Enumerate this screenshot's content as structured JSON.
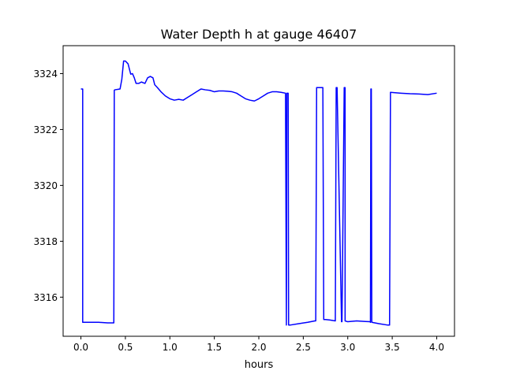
{
  "chart_data": {
    "type": "line",
    "title": "Water Depth h at gauge 46407",
    "xlabel": "hours",
    "ylabel": "",
    "xlim": [
      -0.2,
      4.2
    ],
    "ylim": [
      3314.6,
      3325.0
    ],
    "xticks": [
      0.0,
      0.5,
      1.0,
      1.5,
      2.0,
      2.5,
      3.0,
      3.5,
      4.0
    ],
    "xtick_labels": [
      "0.0",
      "0.5",
      "1.0",
      "1.5",
      "2.0",
      "2.5",
      "3.0",
      "3.5",
      "4.0"
    ],
    "yticks": [
      3316,
      3318,
      3320,
      3322,
      3324
    ],
    "ytick_labels": [
      "3316",
      "3318",
      "3320",
      "3322",
      "3324"
    ],
    "grid": false,
    "series": [
      {
        "color": "#0000ff",
        "x": [
          0.0,
          0.02,
          0.02,
          0.1,
          0.2,
          0.3,
          0.37,
          0.375,
          0.38,
          0.44,
          0.46,
          0.48,
          0.5,
          0.53,
          0.56,
          0.58,
          0.6,
          0.62,
          0.65,
          0.68,
          0.72,
          0.75,
          0.78,
          0.81,
          0.83,
          0.86,
          0.9,
          0.95,
          1.0,
          1.05,
          1.1,
          1.15,
          1.2,
          1.25,
          1.3,
          1.35,
          1.4,
          1.45,
          1.5,
          1.55,
          1.6,
          1.65,
          1.7,
          1.75,
          1.8,
          1.85,
          1.9,
          1.95,
          2.0,
          2.05,
          2.1,
          2.15,
          2.2,
          2.25,
          2.3,
          2.31,
          2.315,
          2.32,
          2.33,
          2.335,
          2.34,
          2.35,
          2.45,
          2.55,
          2.63,
          2.64,
          2.65,
          2.72,
          2.73,
          2.75,
          2.8,
          2.86,
          2.87,
          2.88,
          2.93,
          2.935,
          2.96,
          2.97,
          2.97,
          3.0,
          3.1,
          3.2,
          3.25,
          3.255,
          3.26,
          3.265,
          3.27,
          3.35,
          3.45,
          3.47,
          3.48,
          3.6,
          3.7,
          3.8,
          3.9,
          4.0
        ],
        "y": [
          3323.45,
          3323.45,
          3315.1,
          3315.1,
          3315.1,
          3315.08,
          3315.08,
          3323.4,
          3323.42,
          3323.45,
          3323.8,
          3324.45,
          3324.45,
          3324.35,
          3323.98,
          3324.0,
          3323.85,
          3323.65,
          3323.65,
          3323.7,
          3323.65,
          3323.85,
          3323.9,
          3323.85,
          3323.6,
          3323.5,
          3323.35,
          3323.2,
          3323.1,
          3323.05,
          3323.08,
          3323.05,
          3323.15,
          3323.25,
          3323.35,
          3323.45,
          3323.42,
          3323.4,
          3323.35,
          3323.38,
          3323.38,
          3323.37,
          3323.35,
          3323.3,
          3323.2,
          3323.1,
          3323.05,
          3323.02,
          3323.1,
          3323.2,
          3323.3,
          3323.35,
          3323.35,
          3323.33,
          3323.3,
          3315.0,
          3323.3,
          3323.3,
          3323.3,
          3315.0,
          3315.0,
          3315.0,
          3315.05,
          3315.1,
          3315.15,
          3315.15,
          3323.5,
          3323.5,
          3315.2,
          3315.2,
          3315.18,
          3315.15,
          3323.5,
          3323.5,
          3315.12,
          3315.12,
          3323.5,
          3323.5,
          3315.15,
          3315.12,
          3315.15,
          3315.13,
          3315.12,
          3315.1,
          3323.45,
          3323.45,
          3315.1,
          3315.05,
          3315.0,
          3315.0,
          3323.33,
          3323.3,
          3323.28,
          3323.27,
          3323.25,
          3323.3
        ]
      }
    ],
    "line_color": "#0000ff",
    "axis_color": "#000000",
    "background": "#ffffff"
  }
}
